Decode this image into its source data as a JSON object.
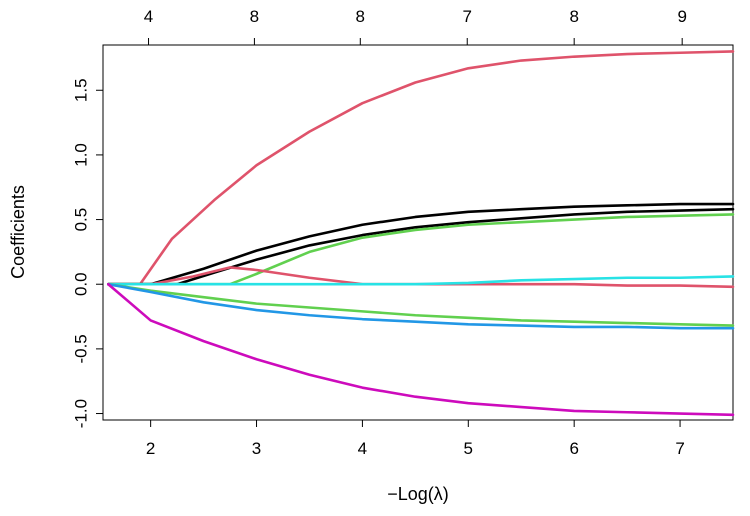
{
  "chart_data": {
    "type": "line",
    "title": "",
    "xlabel": "−Log(λ)",
    "ylabel": "Coefficients",
    "xlim": [
      1.55,
      7.5
    ],
    "ylim": [
      -1.05,
      1.85
    ],
    "x_ticks": [
      2,
      3,
      4,
      5,
      6,
      7
    ],
    "y_ticks": [
      -1.0,
      -0.5,
      0.0,
      0.5,
      1.0,
      1.5
    ],
    "x_tick_labels": [
      "2",
      "3",
      "4",
      "5",
      "6",
      "7"
    ],
    "y_tick_labels": [
      "-1.0",
      "-0.5",
      "0.0",
      "0.5",
      "1.0",
      "1.5"
    ],
    "top_axis": {
      "ticks": [
        1.98,
        2.98,
        3.98,
        4.99,
        6.0,
        7.02
      ],
      "labels": [
        "4",
        "8",
        "8",
        "7",
        "8",
        "9"
      ]
    },
    "grid": false,
    "legend": "none",
    "series": [
      {
        "color": "#DF536B",
        "x": [
          1.6,
          1.9,
          2.2,
          2.6,
          3.0,
          3.5,
          4.0,
          4.5,
          5.0,
          5.5,
          6.0,
          6.5,
          7.0,
          7.5
        ],
        "y": [
          0,
          0.0,
          0.35,
          0.65,
          0.92,
          1.18,
          1.4,
          1.56,
          1.67,
          1.73,
          1.76,
          1.78,
          1.79,
          1.8
        ]
      },
      {
        "color": "#000000",
        "x": [
          1.6,
          2.0,
          2.5,
          3.0,
          3.5,
          4.0,
          4.5,
          5.0,
          5.5,
          6.0,
          6.5,
          7.0,
          7.5
        ],
        "y": [
          0,
          0.0,
          0.12,
          0.26,
          0.37,
          0.46,
          0.52,
          0.56,
          0.58,
          0.6,
          0.61,
          0.62,
          0.62
        ]
      },
      {
        "color": "#000000",
        "x": [
          1.6,
          2.25,
          2.6,
          3.0,
          3.5,
          4.0,
          4.5,
          5.0,
          5.5,
          6.0,
          6.5,
          7.0,
          7.5
        ],
        "y": [
          0,
          0.0,
          0.09,
          0.19,
          0.3,
          0.38,
          0.44,
          0.48,
          0.51,
          0.54,
          0.56,
          0.57,
          0.58
        ]
      },
      {
        "color": "#61D04F",
        "x": [
          1.6,
          2.75,
          3.0,
          3.5,
          4.0,
          4.5,
          5.0,
          5.5,
          6.0,
          6.5,
          7.0,
          7.5
        ],
        "y": [
          0,
          0.0,
          0.08,
          0.25,
          0.36,
          0.42,
          0.46,
          0.48,
          0.5,
          0.52,
          0.53,
          0.54
        ]
      },
      {
        "color": "#DF536B",
        "x": [
          1.6,
          2.0,
          2.4,
          2.75,
          3.0,
          3.5,
          4.0,
          4.5,
          5.0,
          5.5,
          6.0,
          6.5,
          7.0,
          7.5
        ],
        "y": [
          0,
          0.0,
          0.06,
          0.13,
          0.11,
          0.05,
          0.0,
          0.0,
          0.0,
          0.0,
          0.0,
          -0.01,
          -0.01,
          -0.02
        ]
      },
      {
        "color": "#28E2E5",
        "x": [
          1.6,
          4.5,
          5.0,
          5.5,
          6.0,
          6.5,
          7.0,
          7.5
        ],
        "y": [
          0,
          0.0,
          0.01,
          0.03,
          0.04,
          0.05,
          0.05,
          0.06
        ]
      },
      {
        "color": "#61D04F",
        "x": [
          1.6,
          2.0,
          2.5,
          3.0,
          3.5,
          4.0,
          4.5,
          5.0,
          5.5,
          6.0,
          6.5,
          7.0,
          7.5
        ],
        "y": [
          0,
          -0.05,
          -0.1,
          -0.15,
          -0.18,
          -0.21,
          -0.24,
          -0.26,
          -0.28,
          -0.29,
          -0.3,
          -0.31,
          -0.32
        ]
      },
      {
        "color": "#2297E6",
        "x": [
          1.6,
          2.0,
          2.5,
          3.0,
          3.5,
          4.0,
          4.5,
          5.0,
          5.5,
          6.0,
          6.5,
          7.0,
          7.5
        ],
        "y": [
          0,
          -0.06,
          -0.14,
          -0.2,
          -0.24,
          -0.27,
          -0.29,
          -0.31,
          -0.32,
          -0.33,
          -0.33,
          -0.34,
          -0.34
        ]
      },
      {
        "color": "#CD0BBC",
        "x": [
          1.6,
          2.0,
          2.5,
          3.0,
          3.5,
          4.0,
          4.5,
          5.0,
          5.5,
          6.0,
          6.5,
          7.0,
          7.5
        ],
        "y": [
          0,
          -0.28,
          -0.44,
          -0.58,
          -0.7,
          -0.8,
          -0.87,
          -0.92,
          -0.95,
          -0.98,
          -0.99,
          -1.0,
          -1.01
        ]
      }
    ]
  }
}
